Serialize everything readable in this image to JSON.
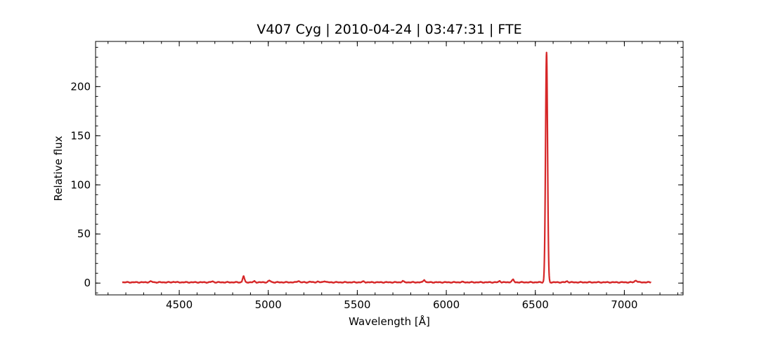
{
  "chart_data": {
    "type": "line",
    "title": "V407 Cyg | 2010-04-24 | 03:47:31 | FTE",
    "xlabel": "Wavelength [Å]",
    "ylabel": "Relative flux",
    "xlim": [
      4030,
      7330
    ],
    "ylim": [
      -12,
      246
    ],
    "x_ticks": [
      4500,
      5000,
      5500,
      6000,
      6500,
      7000
    ],
    "y_ticks": [
      0,
      50,
      100,
      150,
      200
    ],
    "x_minor_step": 100,
    "y_minor_step": 10,
    "grid": false,
    "ticks_direction": "in",
    "ticks_on_all_sides": true,
    "line_color": "#d62728",
    "series": [
      {
        "range": [
          4180,
          7150
        ],
        "baseline": 0.8,
        "peaks": [
          {
            "center": 4340,
            "height": 0.8,
            "width": 8
          },
          {
            "center": 4470,
            "height": 0.5,
            "width": 6
          },
          {
            "center": 4686,
            "height": 0.9,
            "width": 6
          },
          {
            "center": 4861,
            "height": 6.2,
            "width": 5
          },
          {
            "center": 4922,
            "height": 1.0,
            "width": 5
          },
          {
            "center": 5007,
            "height": 1.6,
            "width": 7
          },
          {
            "center": 5169,
            "height": 1.4,
            "width": 6
          },
          {
            "center": 5235,
            "height": 0.6,
            "width": 6
          },
          {
            "center": 5276,
            "height": 0.7,
            "width": 6
          },
          {
            "center": 5316,
            "height": 1.3,
            "width": 6
          },
          {
            "center": 5535,
            "height": 0.8,
            "width": 6
          },
          {
            "center": 5755,
            "height": 1.3,
            "width": 5
          },
          {
            "center": 5876,
            "height": 2.6,
            "width": 5
          },
          {
            "center": 6087,
            "height": 0.4,
            "width": 6
          },
          {
            "center": 6300,
            "height": 1.3,
            "width": 5
          },
          {
            "center": 6364,
            "height": 0.7,
            "width": 5
          },
          {
            "center": 6375,
            "height": 2.5,
            "width": 5
          },
          {
            "center": 6563,
            "height": 234,
            "width": 5.6
          },
          {
            "center": 6678,
            "height": 1.0,
            "width": 6
          },
          {
            "center": 7065,
            "height": 1.8,
            "width": 7
          }
        ]
      }
    ]
  }
}
